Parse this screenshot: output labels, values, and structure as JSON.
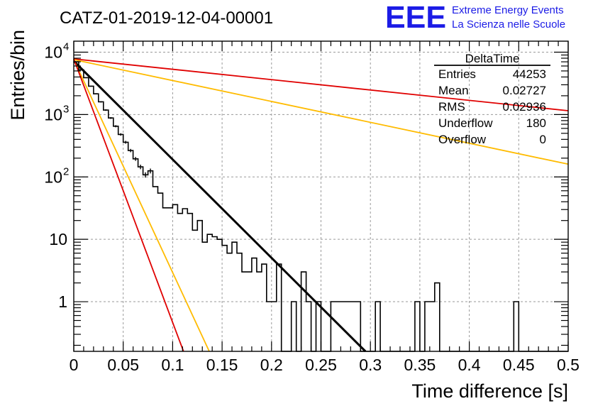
{
  "chart_data": {
    "type": "line",
    "title": "CATZ-01-2019-12-04-00001",
    "xlabel": "Time difference [s]",
    "ylabel": "Entries/bin",
    "xlim": [
      0,
      0.5
    ],
    "ylim": [
      0.16,
      15000
    ],
    "y_scale": "log",
    "grid": true,
    "x_tick_labels": [
      "0",
      "0.05",
      "0.1",
      "0.15",
      "0.2",
      "0.25",
      "0.3",
      "0.35",
      "0.4",
      "0.45",
      "0.5"
    ],
    "x_tick_values": [
      0,
      0.05,
      0.1,
      0.15,
      0.2,
      0.25,
      0.3,
      0.35,
      0.4,
      0.45,
      0.5
    ],
    "y_tick_labels": [
      {
        "value": 10000,
        "base": "10",
        "exp": "4"
      },
      {
        "value": 1000,
        "base": "10",
        "exp": "3"
      },
      {
        "value": 100,
        "base": "10",
        "exp": "2"
      },
      {
        "value": 10,
        "base": "10",
        "exp": ""
      },
      {
        "value": 1,
        "base": "1",
        "exp": ""
      }
    ],
    "stats_box": {
      "title": "DeltaTime",
      "rows": [
        {
          "label": "Entries",
          "value": "44253"
        },
        {
          "label": "Mean",
          "value": "0.02727"
        },
        {
          "label": "RMS",
          "value": "0.02936"
        },
        {
          "label": "Underflow",
          "value": "180"
        },
        {
          "label": "Overflow",
          "value": "0"
        }
      ]
    },
    "histogram": {
      "color": "#000000",
      "bin_width": 0.005,
      "values": [
        7000,
        5200,
        3900,
        2850,
        2150,
        1600,
        1180,
        880,
        650,
        480,
        360,
        265,
        195,
        145,
        108,
        125,
        70,
        55,
        32,
        32,
        36,
        26,
        31,
        26,
        14,
        20,
        9,
        12,
        11,
        10,
        8,
        6,
        9,
        6,
        3,
        3,
        5,
        3,
        4,
        1,
        1,
        4,
        0,
        0,
        1,
        0,
        3,
        1,
        0,
        1,
        0,
        0,
        1,
        1,
        1,
        1,
        1,
        1,
        0,
        0,
        0,
        1,
        0,
        0,
        0,
        0,
        0,
        0,
        0,
        1,
        0,
        1,
        1,
        2,
        0,
        0,
        0,
        0,
        0,
        0,
        0,
        0,
        0,
        0,
        0,
        0,
        0,
        0,
        0,
        1,
        0,
        0,
        0,
        0,
        0,
        0,
        0,
        0,
        0,
        0
      ]
    },
    "series": [
      {
        "color": "#e00000",
        "x": [
          0,
          0.5
        ],
        "y": [
          7800,
          1150
        ]
      },
      {
        "color": "#ffbb00",
        "x": [
          0,
          0.5
        ],
        "y": [
          7600,
          160
        ]
      },
      {
        "color": "#000000",
        "x": [
          0,
          0.295
        ],
        "y": [
          7200,
          0.16
        ]
      },
      {
        "color": "#ffbb00",
        "x": [
          0,
          0.137
        ],
        "y": [
          7600,
          0.16
        ]
      },
      {
        "color": "#e00000",
        "x": [
          0,
          0.111
        ],
        "y": [
          7800,
          0.16
        ]
      }
    ]
  },
  "logo": {
    "letters": "EEE",
    "line1": "Extreme Energy Events",
    "line2": "La Scienza nelle Scuole",
    "color": "#1c1ce6"
  }
}
